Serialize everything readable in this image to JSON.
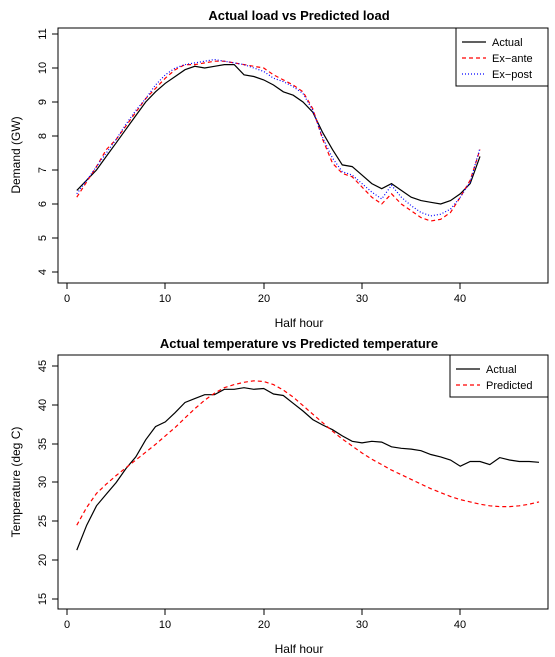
{
  "chart_data": [
    {
      "type": "line",
      "title": "Actual load vs Predicted load",
      "xlabel": "Half hour",
      "ylabel": "Demand (GW)",
      "xlim": [
        0,
        48
      ],
      "ylim": [
        4,
        11
      ],
      "xticks": [
        "0",
        "10",
        "20",
        "30",
        "40"
      ],
      "yticks": [
        "4",
        "5",
        "6",
        "7",
        "8",
        "9",
        "10",
        "11"
      ],
      "legend_position": "top-right",
      "series": [
        {
          "name": "Actual",
          "color": "#000000",
          "style": "solid",
          "values": [
            6.4,
            6.7,
            7.0,
            7.4,
            7.8,
            8.2,
            8.6,
            9.0,
            9.3,
            9.55,
            9.75,
            9.95,
            10.05,
            10.0,
            10.05,
            10.1,
            10.1,
            9.8,
            9.75,
            9.65,
            9.5,
            9.3,
            9.2,
            9.0,
            8.7,
            8.1,
            7.6,
            7.15,
            7.1,
            6.85,
            6.6,
            6.45,
            6.6,
            6.4,
            6.2,
            6.1,
            6.05,
            6.0,
            6.1,
            6.3,
            6.6,
            7.4
          ]
        },
        {
          "name": "Ex−ante",
          "color": "#ff0000",
          "style": "dashed",
          "values": [
            6.2,
            6.65,
            7.1,
            7.6,
            7.9,
            8.3,
            8.7,
            9.1,
            9.4,
            9.7,
            9.95,
            10.1,
            10.1,
            10.15,
            10.2,
            10.2,
            10.15,
            10.1,
            10.05,
            10.0,
            9.8,
            9.65,
            9.5,
            9.3,
            8.8,
            7.9,
            7.2,
            6.9,
            6.8,
            6.5,
            6.2,
            6.0,
            6.3,
            6.0,
            5.8,
            5.6,
            5.5,
            5.55,
            5.75,
            6.2,
            6.7,
            7.6
          ]
        },
        {
          "name": "Ex−post",
          "color": "#0000ff",
          "style": "dotted",
          "values": [
            6.3,
            6.7,
            7.1,
            7.5,
            7.9,
            8.35,
            8.75,
            9.1,
            9.5,
            9.8,
            10.0,
            10.1,
            10.15,
            10.2,
            10.25,
            10.2,
            10.15,
            10.1,
            10.0,
            9.9,
            9.7,
            9.6,
            9.45,
            9.25,
            8.75,
            7.95,
            7.35,
            6.95,
            6.85,
            6.6,
            6.35,
            6.15,
            6.55,
            6.2,
            5.95,
            5.75,
            5.65,
            5.7,
            5.85,
            6.2,
            6.65,
            7.65
          ]
        }
      ]
    },
    {
      "type": "line",
      "title": "Actual temperature vs Predicted temperature",
      "xlabel": "Half hour",
      "ylabel": "Temperature (deg C)",
      "xlim": [
        0,
        48
      ],
      "ylim": [
        15,
        45
      ],
      "xticks": [
        "0",
        "10",
        "20",
        "30",
        "40"
      ],
      "yticks": [
        "15",
        "20",
        "25",
        "30",
        "35",
        "40",
        "45"
      ],
      "legend_position": "top-right",
      "series": [
        {
          "name": "Actual",
          "color": "#000000",
          "style": "solid",
          "values": [
            21.3,
            24.5,
            27.0,
            28.5,
            30.0,
            31.8,
            33.3,
            35.5,
            37.2,
            37.8,
            39.0,
            40.3,
            40.8,
            41.3,
            41.3,
            42.0,
            42.0,
            42.2,
            42.0,
            42.1,
            41.4,
            41.2,
            40.2,
            39.2,
            38.1,
            37.4,
            36.8,
            36.0,
            35.3,
            35.1,
            35.3,
            35.2,
            34.6,
            34.4,
            34.3,
            34.1,
            33.6,
            33.3,
            32.9,
            32.1,
            32.7,
            32.7,
            32.3,
            33.2,
            32.9,
            32.7,
            32.7,
            32.6
          ]
        },
        {
          "name": "Predicted",
          "color": "#ff0000",
          "style": "dashed",
          "values": [
            24.5,
            26.8,
            28.6,
            29.8,
            30.9,
            31.9,
            32.9,
            33.9,
            34.9,
            36.0,
            37.1,
            38.3,
            39.5,
            40.6,
            41.5,
            42.2,
            42.6,
            42.9,
            43.1,
            43.0,
            42.6,
            41.9,
            41.0,
            39.9,
            38.8,
            37.7,
            36.6,
            35.6,
            34.7,
            33.8,
            33.0,
            32.3,
            31.6,
            31.0,
            30.4,
            29.8,
            29.2,
            28.7,
            28.2,
            27.8,
            27.5,
            27.2,
            27.0,
            26.9,
            26.9,
            27.0,
            27.2,
            27.5
          ]
        }
      ]
    }
  ]
}
